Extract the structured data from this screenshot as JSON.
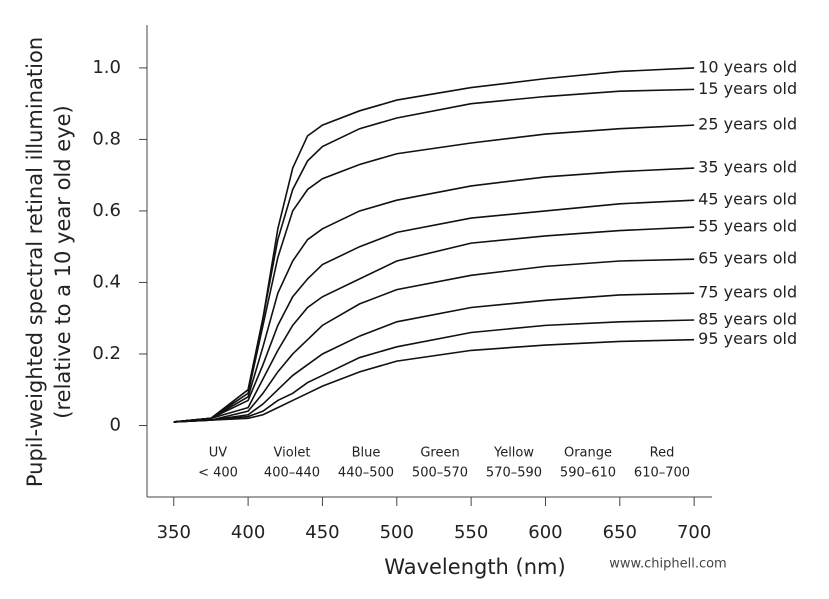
{
  "chart_data": {
    "type": "line",
    "xlabel": "Wavelength (nm)",
    "ylabel": [
      "Pupil-weighted spectral retinal illumination",
      "(relative to a 10 year old eye)"
    ],
    "x": [
      350,
      375,
      400,
      410,
      420,
      430,
      440,
      450,
      475,
      500,
      550,
      600,
      650,
      700
    ],
    "series": [
      {
        "name": "10 years old",
        "color": "#111111",
        "values": [
          0.01,
          0.02,
          0.1,
          0.3,
          0.55,
          0.72,
          0.81,
          0.84,
          0.88,
          0.91,
          0.945,
          0.97,
          0.99,
          1.0
        ]
      },
      {
        "name": "15 years old",
        "color": "#111111",
        "values": [
          0.01,
          0.02,
          0.1,
          0.3,
          0.52,
          0.66,
          0.74,
          0.78,
          0.83,
          0.86,
          0.9,
          0.92,
          0.935,
          0.94
        ]
      },
      {
        "name": "25 years old",
        "color": "#111111",
        "values": [
          0.01,
          0.02,
          0.09,
          0.28,
          0.47,
          0.6,
          0.66,
          0.69,
          0.73,
          0.76,
          0.79,
          0.815,
          0.83,
          0.84
        ]
      },
      {
        "name": "35 years old",
        "color": "#111111",
        "values": [
          0.01,
          0.02,
          0.08,
          0.22,
          0.37,
          0.46,
          0.52,
          0.55,
          0.6,
          0.63,
          0.67,
          0.695,
          0.71,
          0.72
        ]
      },
      {
        "name": "45 years old",
        "color": "#111111",
        "values": [
          0.01,
          0.02,
          0.07,
          0.17,
          0.28,
          0.36,
          0.41,
          0.45,
          0.5,
          0.54,
          0.58,
          0.6,
          0.62,
          0.63
        ]
      },
      {
        "name": "55 years old",
        "color": "#111111",
        "values": [
          0.01,
          0.02,
          0.05,
          0.13,
          0.21,
          0.28,
          0.33,
          0.36,
          0.41,
          0.46,
          0.51,
          0.53,
          0.545,
          0.555
        ]
      },
      {
        "name": "65 years old",
        "color": "#111111",
        "values": [
          0.01,
          0.015,
          0.04,
          0.09,
          0.15,
          0.2,
          0.24,
          0.28,
          0.34,
          0.38,
          0.42,
          0.445,
          0.46,
          0.465
        ]
      },
      {
        "name": "75 years old",
        "color": "#111111",
        "values": [
          0.01,
          0.015,
          0.03,
          0.06,
          0.1,
          0.14,
          0.17,
          0.2,
          0.25,
          0.29,
          0.33,
          0.35,
          0.365,
          0.37
        ]
      },
      {
        "name": "85 years old",
        "color": "#111111",
        "values": [
          0.01,
          0.015,
          0.025,
          0.04,
          0.07,
          0.09,
          0.12,
          0.14,
          0.19,
          0.22,
          0.26,
          0.28,
          0.29,
          0.295
        ]
      },
      {
        "name": "95 years old",
        "color": "#111111",
        "values": [
          0.01,
          0.015,
          0.02,
          0.03,
          0.05,
          0.07,
          0.09,
          0.11,
          0.15,
          0.18,
          0.21,
          0.225,
          0.235,
          0.24
        ]
      }
    ],
    "bands": [
      {
        "name": "UV",
        "range": "< 400"
      },
      {
        "name": "Violet",
        "range": "400–440"
      },
      {
        "name": "Blue",
        "range": "440–500"
      },
      {
        "name": "Green",
        "range": "500–570"
      },
      {
        "name": "Yellow",
        "range": "570–590"
      },
      {
        "name": "Orange",
        "range": "590–610"
      },
      {
        "name": "Red",
        "range": "610–700"
      }
    ],
    "xlim": [
      332,
      712
    ],
    "ylim": [
      -0.2,
      1.12
    ],
    "xticks": [
      350,
      400,
      450,
      500,
      550,
      600,
      650,
      700
    ],
    "yticks": [
      0,
      0.2,
      0.4,
      0.6,
      0.8,
      {
        "value": 1,
        "label": "1.0"
      }
    ],
    "watermark": "www.chiphell.com"
  }
}
